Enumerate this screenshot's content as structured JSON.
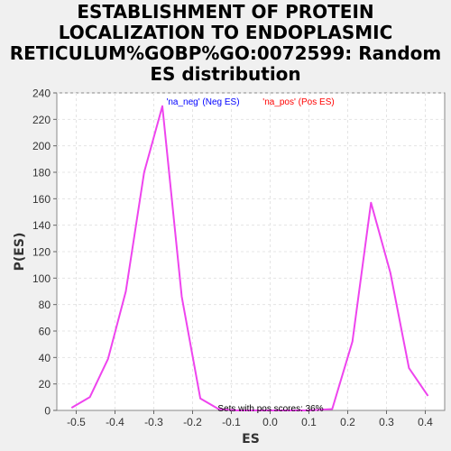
{
  "chart_data": {
    "type": "line",
    "title": "ESTABLISHMENT OF PROTEIN\nLOCALIZATION TO ENDOPLASMIC\nRETICULUM%GOBP%GO:0072599: Random\nES distribution",
    "xlabel": "ES",
    "ylabel": "P(ES)",
    "xlim": [
      -0.55,
      0.45
    ],
    "ylim": [
      0,
      240
    ],
    "xticks": [
      -0.5,
      -0.4,
      -0.3,
      -0.2,
      -0.1,
      0.0,
      0.1,
      0.2,
      0.3,
      0.4
    ],
    "xtick_labels": [
      "-0.5",
      "-0.4",
      "-0.3",
      "-0.2",
      "-0.1",
      "0.0",
      "0.1",
      "0.2",
      "0.3",
      "0.4"
    ],
    "yticks": [
      0,
      20,
      40,
      60,
      80,
      100,
      120,
      140,
      160,
      180,
      200,
      220,
      240
    ],
    "ytick_labels": [
      "0",
      "20",
      "40",
      "60",
      "80",
      "100",
      "120",
      "140",
      "160",
      "180",
      "200",
      "220",
      "240"
    ],
    "grid": true,
    "legend": [
      {
        "label": "'na_neg' (Neg ES)",
        "color": "#0000ff"
      },
      {
        "label": "'na_pos' (Pos ES)",
        "color": "#ff0000"
      }
    ],
    "annotation": "Sets with pos scores: 36%",
    "series": [
      {
        "color": "#ee44ee",
        "x": [
          -0.512,
          -0.465,
          -0.418,
          -0.372,
          -0.325,
          -0.278,
          -0.228,
          -0.18,
          -0.133,
          -0.086,
          -0.04,
          0.007,
          0.054,
          0.1,
          0.16,
          0.212,
          0.26,
          0.31,
          0.358,
          0.407
        ],
        "y": [
          2,
          10,
          39,
          90,
          180,
          230,
          86,
          9,
          1,
          0,
          0,
          0,
          0,
          0,
          1,
          52,
          157,
          104,
          32,
          11
        ]
      }
    ]
  }
}
